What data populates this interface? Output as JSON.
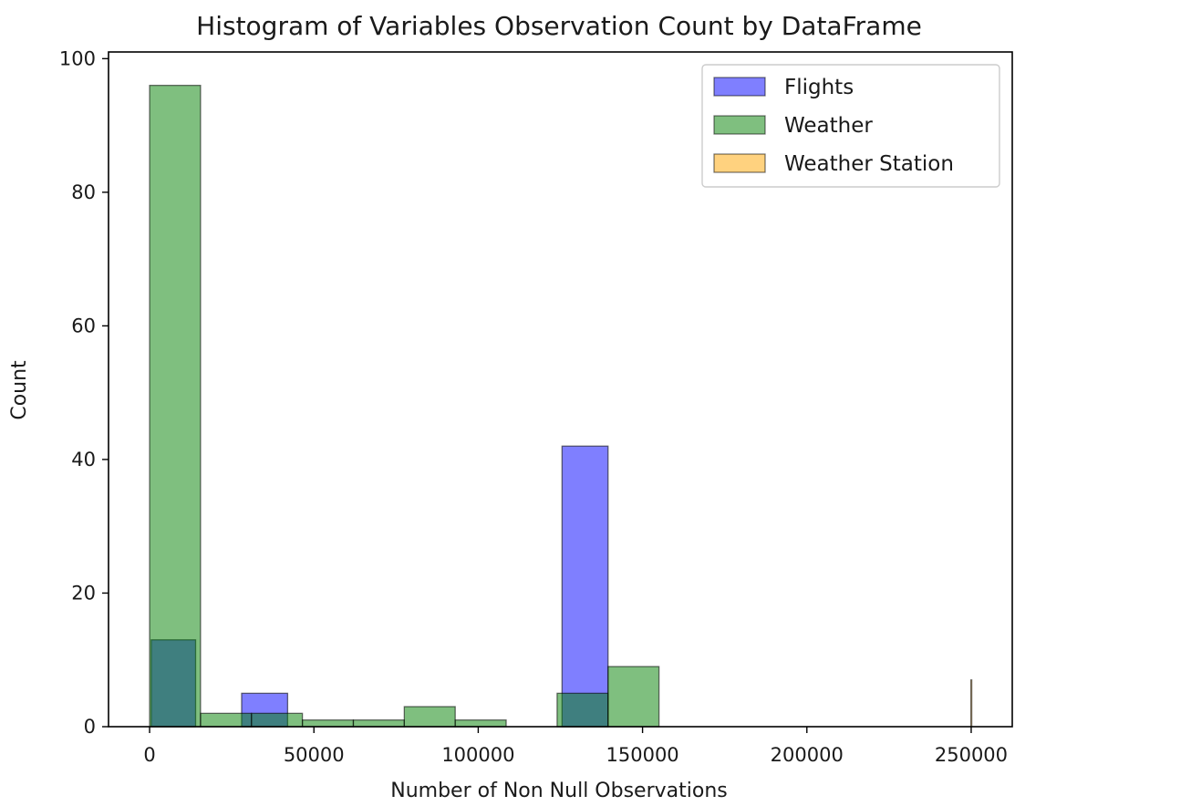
{
  "chart_data": {
    "type": "bar",
    "title": "Histogram of Variables Observation Count by DataFrame",
    "xlabel": "Number of Non Null Observations",
    "ylabel": "Count",
    "xlim": [
      -12500,
      262500
    ],
    "ylim": [
      0,
      101
    ],
    "xticks": [
      0,
      50000,
      100000,
      150000,
      200000,
      250000
    ],
    "yticks": [
      0,
      20,
      40,
      60,
      80,
      100
    ],
    "grid": false,
    "legend_position": "top-right",
    "series": [
      {
        "name": "Flights",
        "color": "#0000ff",
        "bins": [
          {
            "x0": 500,
            "x1": 14000,
            "count": 13
          },
          {
            "x0": 28000,
            "x1": 42000,
            "count": 5
          },
          {
            "x0": 125500,
            "x1": 139500,
            "count": 42
          }
        ]
      },
      {
        "name": "Weather",
        "color": "#008000",
        "bins": [
          {
            "x0": 0,
            "x1": 15500,
            "count": 96
          },
          {
            "x0": 15500,
            "x1": 31000,
            "count": 2
          },
          {
            "x0": 31000,
            "x1": 46500,
            "count": 2
          },
          {
            "x0": 46500,
            "x1": 62000,
            "count": 1
          },
          {
            "x0": 62000,
            "x1": 77500,
            "count": 1
          },
          {
            "x0": 77500,
            "x1": 93000,
            "count": 3
          },
          {
            "x0": 93000,
            "x1": 108500,
            "count": 1
          },
          {
            "x0": 108500,
            "x1": 124000,
            "count": 0
          },
          {
            "x0": 124000,
            "x1": 139500,
            "count": 5
          },
          {
            "x0": 139500,
            "x1": 155000,
            "count": 9
          }
        ]
      },
      {
        "name": "Weather Station",
        "color": "#ffa500",
        "bins": [
          {
            "x0": 249900,
            "x1": 250000,
            "count": 7
          }
        ]
      }
    ]
  }
}
